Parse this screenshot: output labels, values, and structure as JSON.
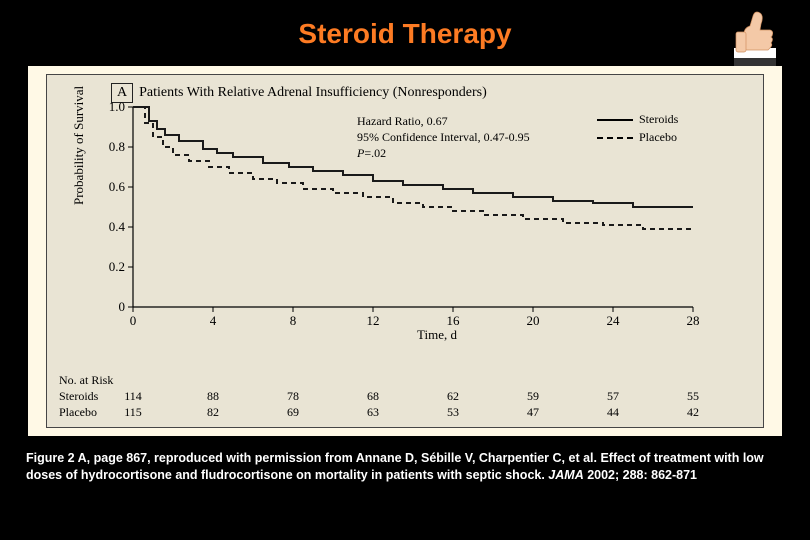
{
  "slide": {
    "title": "Steroid Therapy",
    "background_color": "#000000",
    "title_color": "#fd7b23"
  },
  "thumbs_icon": {
    "name": "thumbs-up-icon",
    "skin_color": "#f4c9a7",
    "cuff_color": "#ffffff",
    "sleeve_color": "#333333"
  },
  "figure": {
    "panel_letter": "A",
    "panel_title": "Patients With Relative Adrenal Insufficiency (Nonresponders)",
    "background_color": "#e9e4d4",
    "wrap_background": "#fff9e6",
    "border_color": "#464646",
    "y_axis": {
      "label": "Probability of Survival",
      "min": 0,
      "max": 1.0,
      "ticks": [
        0,
        0.2,
        0.4,
        0.6,
        0.8,
        1.0
      ],
      "tick_labels": [
        "0",
        "0.2",
        "0.4",
        "0.6",
        "0.8",
        "1.0"
      ]
    },
    "x_axis": {
      "label": "Time, d",
      "min": 0,
      "max": 28,
      "ticks": [
        0,
        4,
        8,
        12,
        16,
        20,
        24,
        28
      ],
      "tick_labels": [
        "0",
        "4",
        "8",
        "12",
        "16",
        "20",
        "24",
        "28"
      ]
    },
    "hazard_text": {
      "line1": "Hazard Ratio, 0.67",
      "line2": "95% Confidence Interval, 0.47-0.95",
      "line3_prefix": "P",
      "line3_rest": "=.02"
    },
    "legend": {
      "steroids": "Steroids",
      "placebo": "Placebo"
    },
    "series": {
      "steroids": {
        "color": "#1a1a1a",
        "style": "solid",
        "width": 2,
        "points": [
          [
            0,
            1.0
          ],
          [
            0.8,
            1.0
          ],
          [
            0.8,
            0.93
          ],
          [
            1.2,
            0.93
          ],
          [
            1.2,
            0.89
          ],
          [
            1.6,
            0.89
          ],
          [
            1.6,
            0.86
          ],
          [
            2.3,
            0.86
          ],
          [
            2.3,
            0.83
          ],
          [
            3.5,
            0.83
          ],
          [
            3.5,
            0.79
          ],
          [
            4.2,
            0.79
          ],
          [
            4.2,
            0.77
          ],
          [
            5.0,
            0.77
          ],
          [
            5.0,
            0.75
          ],
          [
            6.5,
            0.75
          ],
          [
            6.5,
            0.72
          ],
          [
            7.8,
            0.72
          ],
          [
            7.8,
            0.7
          ],
          [
            9.0,
            0.7
          ],
          [
            9.0,
            0.68
          ],
          [
            10.5,
            0.68
          ],
          [
            10.5,
            0.66
          ],
          [
            12,
            0.66
          ],
          [
            12,
            0.63
          ],
          [
            13.5,
            0.63
          ],
          [
            13.5,
            0.61
          ],
          [
            15.5,
            0.61
          ],
          [
            15.5,
            0.59
          ],
          [
            17,
            0.59
          ],
          [
            17,
            0.57
          ],
          [
            19,
            0.57
          ],
          [
            19,
            0.55
          ],
          [
            21,
            0.55
          ],
          [
            21,
            0.53
          ],
          [
            23,
            0.53
          ],
          [
            23,
            0.52
          ],
          [
            25,
            0.52
          ],
          [
            25,
            0.5
          ],
          [
            28,
            0.5
          ]
        ]
      },
      "placebo": {
        "color": "#1a1a1a",
        "style": "dashed",
        "width": 2,
        "dash": "5,4",
        "points": [
          [
            0,
            1.0
          ],
          [
            0.6,
            1.0
          ],
          [
            0.6,
            0.92
          ],
          [
            1.0,
            0.92
          ],
          [
            1.0,
            0.85
          ],
          [
            1.5,
            0.85
          ],
          [
            1.5,
            0.8
          ],
          [
            2.0,
            0.8
          ],
          [
            2.0,
            0.76
          ],
          [
            2.8,
            0.76
          ],
          [
            2.8,
            0.73
          ],
          [
            3.8,
            0.73
          ],
          [
            3.8,
            0.7
          ],
          [
            4.8,
            0.7
          ],
          [
            4.8,
            0.67
          ],
          [
            6.0,
            0.67
          ],
          [
            6.0,
            0.64
          ],
          [
            7.2,
            0.64
          ],
          [
            7.2,
            0.62
          ],
          [
            8.5,
            0.62
          ],
          [
            8.5,
            0.59
          ],
          [
            10,
            0.59
          ],
          [
            10,
            0.57
          ],
          [
            11.5,
            0.57
          ],
          [
            11.5,
            0.55
          ],
          [
            13,
            0.55
          ],
          [
            13,
            0.52
          ],
          [
            14.5,
            0.52
          ],
          [
            14.5,
            0.5
          ],
          [
            16,
            0.5
          ],
          [
            16,
            0.48
          ],
          [
            17.5,
            0.48
          ],
          [
            17.5,
            0.46
          ],
          [
            19.5,
            0.46
          ],
          [
            19.5,
            0.44
          ],
          [
            21.5,
            0.44
          ],
          [
            21.5,
            0.42
          ],
          [
            23.5,
            0.42
          ],
          [
            23.5,
            0.41
          ],
          [
            25.5,
            0.41
          ],
          [
            25.5,
            0.39
          ],
          [
            28,
            0.39
          ]
        ]
      }
    },
    "risk_table": {
      "header": "No. at Risk",
      "rows": [
        {
          "label": "Steroids",
          "values": [
            114,
            88,
            78,
            68,
            62,
            59,
            57,
            55
          ]
        },
        {
          "label": "Placebo",
          "values": [
            115,
            82,
            69,
            63,
            53,
            47,
            44,
            42
          ]
        }
      ]
    }
  },
  "citation": {
    "text_before_journal": "Figure 2 A, page 867, reproduced with permission from Annane D, Sébille V, Charpentier C, et al. Effect of treatment with low doses of hydrocortisone and fludrocortisone on mortality in patients with septic shock. ",
    "journal": "JAMA",
    "text_after_journal": " 2002; 288: 862-871"
  }
}
